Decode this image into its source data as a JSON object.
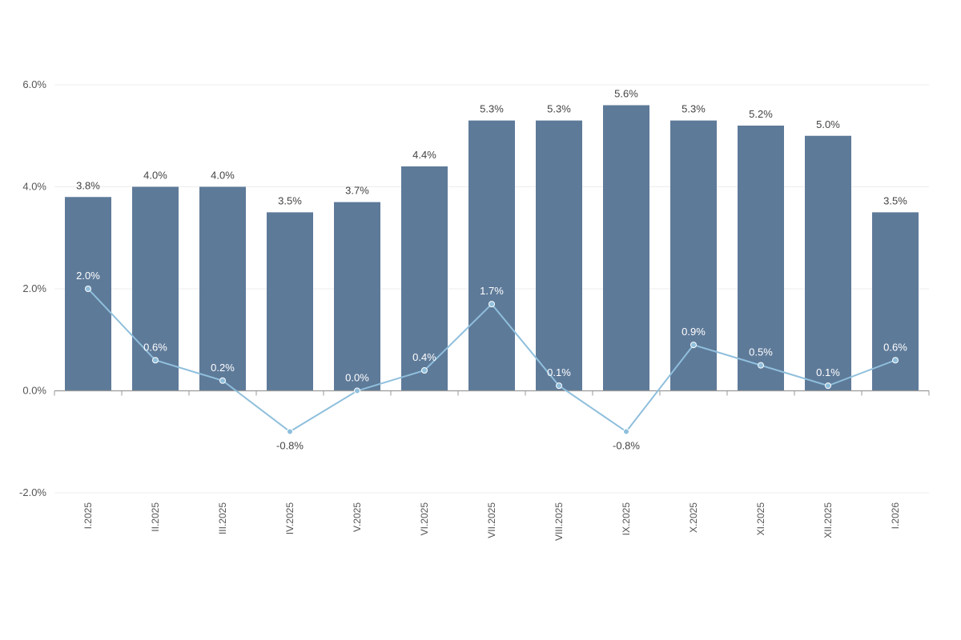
{
  "chart_data": {
    "type": "bar",
    "categories": [
      "I.2025",
      "II.2025",
      "III.2025",
      "IV.2025",
      "V.2025",
      "VI.2025",
      "VII.2025",
      "VIII.2025",
      "IX.2025",
      "X.2025",
      "XI.2025",
      "XII.2025",
      "I.2026"
    ],
    "series": [
      {
        "type": "bar",
        "values": [
          3.8,
          4.0,
          4.0,
          3.5,
          3.7,
          4.4,
          5.3,
          5.3,
          5.6,
          5.3,
          5.2,
          5.0,
          3.5
        ],
        "labels": [
          "3.8%",
          "4.0%",
          "4.0%",
          "3.5%",
          "3.7%",
          "4.4%",
          "5.3%",
          "5.3%",
          "5.6%",
          "5.3%",
          "5.2%",
          "5.0%",
          "3.5%"
        ],
        "color": "#5e7a99"
      },
      {
        "type": "line",
        "values": [
          2.0,
          0.6,
          0.2,
          -0.8,
          0.0,
          0.4,
          1.7,
          0.1,
          -0.8,
          0.9,
          0.5,
          0.1,
          0.6
        ],
        "labels": [
          "2.0%",
          "0.6%",
          "0.2%",
          "-0.8%",
          "0.0%",
          "0.4%",
          "1.7%",
          "0.1%",
          "-0.8%",
          "0.9%",
          "0.5%",
          "0.1%",
          "0.6%"
        ],
        "color": "#8fbfdc"
      }
    ],
    "yticks": [
      "6.0%",
      "4.0%",
      "2.0%",
      "0.0%",
      "-2.0%"
    ],
    "ytick_values": [
      6,
      4,
      2,
      0,
      -2
    ],
    "ylim": [
      -2,
      6
    ],
    "title": "",
    "xlabel": "",
    "ylabel": "",
    "grid": true,
    "gridline_color": "#ececec",
    "axis_color": "#999999"
  }
}
